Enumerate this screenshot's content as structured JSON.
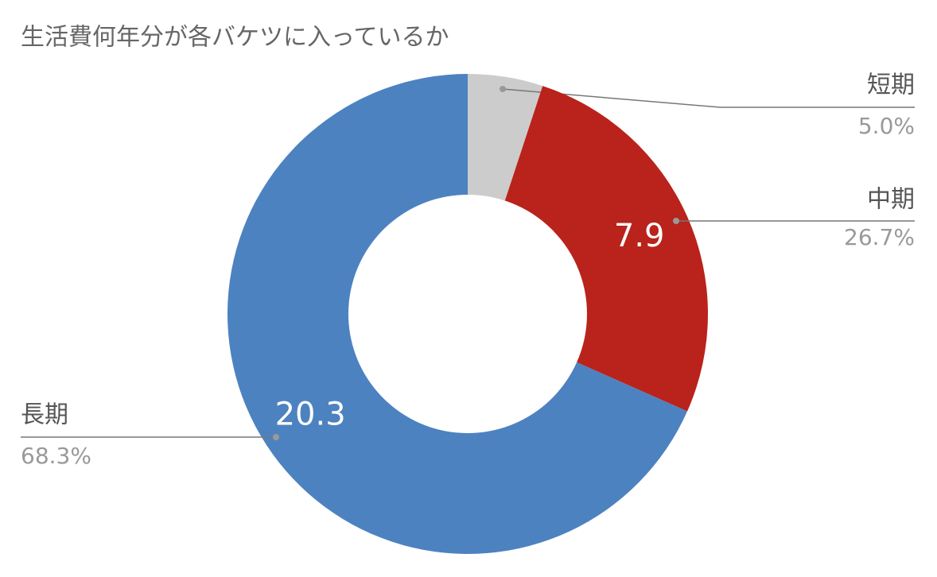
{
  "chart_data": {
    "type": "donut",
    "title": "生活費何年分が各バケツに入っているか",
    "categories": [
      "短期",
      "中期",
      "長期"
    ],
    "values": [
      1.5,
      7.9,
      20.3
    ],
    "percent_labels": [
      "5.0%",
      "26.7%",
      "68.3%"
    ],
    "colors": [
      "#cccccc",
      "#b9231b",
      "#4d82c0"
    ]
  }
}
